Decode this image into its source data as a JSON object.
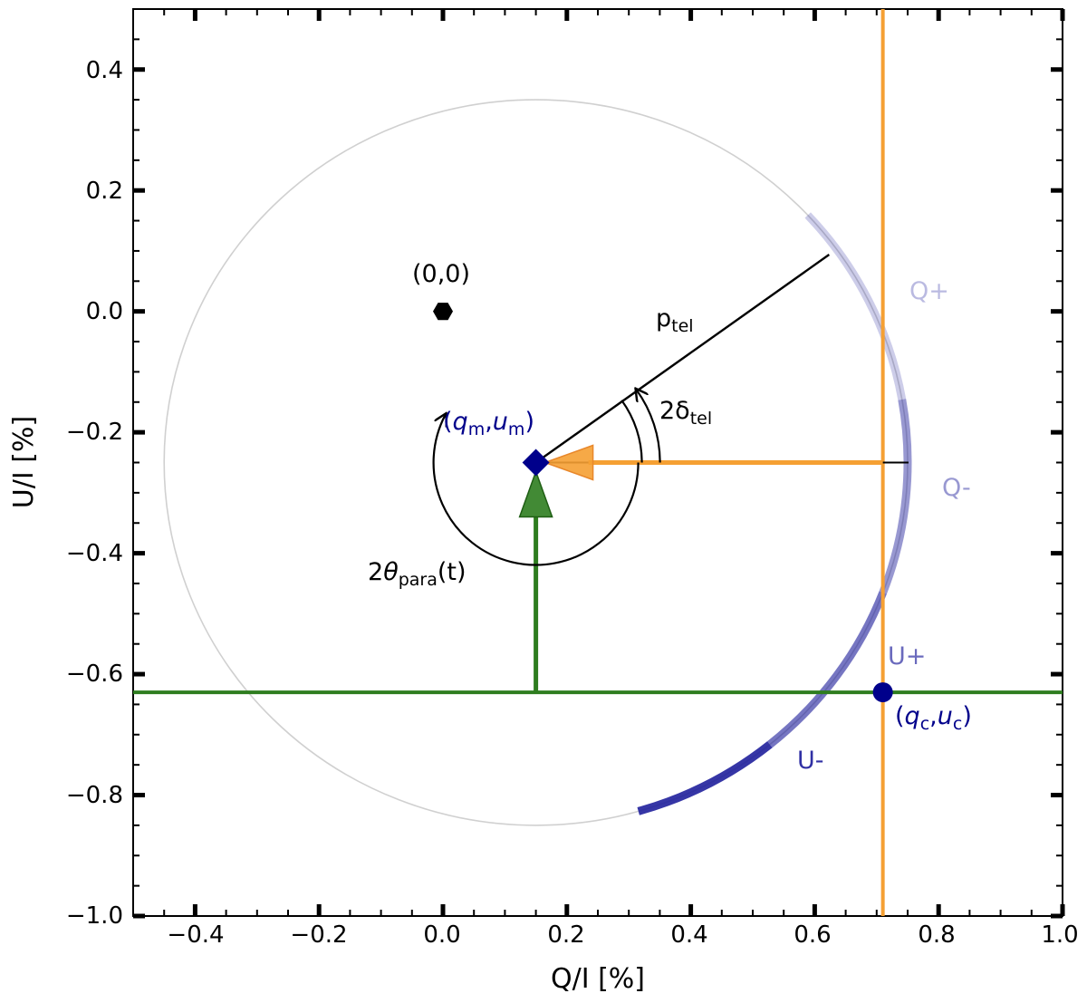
{
  "chart_data": {
    "type": "scatter",
    "title": "",
    "xlabel": "Q/I [%]",
    "ylabel": "U/I  [%]",
    "xlim": [
      -0.5,
      1.0
    ],
    "ylim": [
      -1.0,
      0.5
    ],
    "grid": false,
    "x_ticks": [
      -0.4,
      -0.2,
      0.0,
      0.2,
      0.4,
      0.6,
      0.8,
      1.0
    ],
    "x_tick_labels": [
      "−0.4",
      "−0.2",
      "0.0",
      "0.2",
      "0.4",
      "0.6",
      "0.8",
      "1.0"
    ],
    "y_ticks": [
      0.4,
      0.2,
      0.0,
      -0.2,
      -0.4,
      -0.6,
      -0.8,
      -1.0
    ],
    "y_tick_labels": [
      "0.4",
      "0.2",
      "0.0",
      "−0.2",
      "−0.4",
      "−0.6",
      "−0.8",
      "−1.0"
    ],
    "colors": {
      "orange": "#f5a033",
      "green": "#2e7d1f",
      "navy": "#00008b",
      "arc": "#1a1a9a",
      "circle": "#d0d0d0",
      "black": "#000000"
    },
    "points": {
      "origin": {
        "q": 0.0,
        "u": 0.0,
        "label": "(0,0)"
      },
      "measured": {
        "q": 0.15,
        "u": -0.25,
        "label_q": "q",
        "label_q_sub": "m",
        "label_u": "u",
        "label_u_sub": "m"
      },
      "corrected": {
        "q": 0.71,
        "u": -0.63,
        "label_q": "q",
        "label_q_sub": "c",
        "label_u": "u",
        "label_u_sub": "c"
      }
    },
    "circle": {
      "center_q": 0.15,
      "center_u": -0.25,
      "radius": 0.6
    },
    "p_tel": {
      "angle_deg": 36,
      "length": 0.585,
      "label": "p",
      "label_sub": "tel"
    },
    "delta_tel": {
      "label": "2δ",
      "label_sub": "tel"
    },
    "theta_para": {
      "label_pre": "2",
      "label_theta": "θ",
      "label_sub": "para",
      "label_post": "(t)"
    },
    "orange_vertical_q": 0.71,
    "green_horizontal_u": -0.63,
    "stokes_arcs": [
      {
        "label": "Q+",
        "start_deg": 43,
        "end_deg": 10,
        "opacity": 0.22
      },
      {
        "label": "Q-",
        "start_deg": 10,
        "end_deg": -21,
        "opacity": 0.45
      },
      {
        "label": "U+",
        "start_deg": -21,
        "end_deg": -51,
        "opacity": 0.6
      },
      {
        "label": "U-",
        "start_deg": -51,
        "end_deg": -74,
        "opacity": 0.88
      }
    ]
  }
}
